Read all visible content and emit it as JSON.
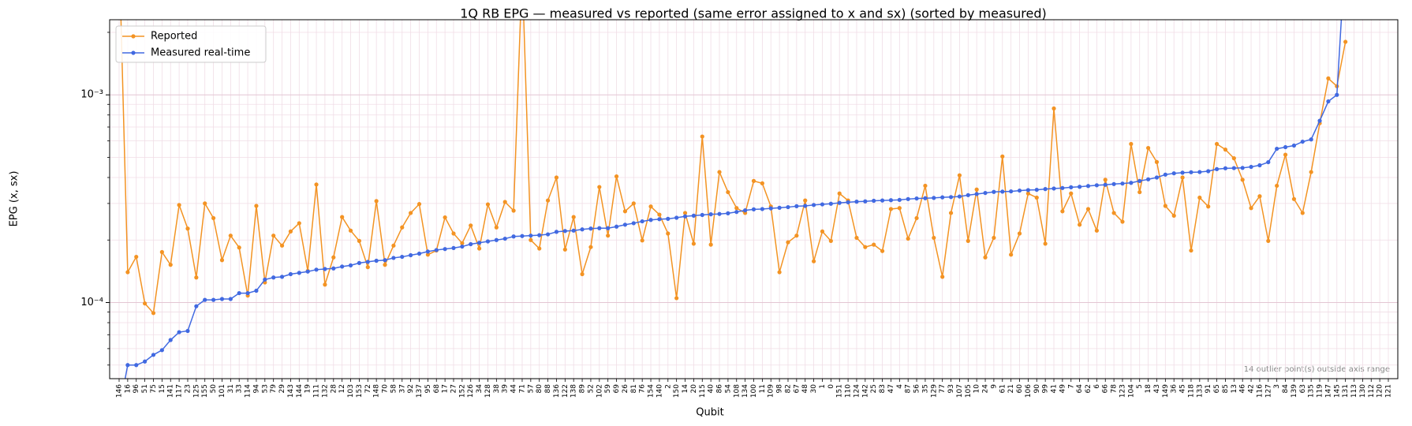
{
  "chart_data": {
    "type": "line",
    "title": "1Q RB EPG — measured vs reported (same error assigned to x and sx) (sorted by measured)",
    "xlabel": "Qubit",
    "ylabel": "EPG (x, sx)",
    "annotation": "14 outlier point(s) outside axis range",
    "yscale": "log",
    "grid": true,
    "legend": "upper left",
    "ylim": [
      4.3e-05,
      0.0023
    ],
    "yticks": [
      {
        "value": 0.0001,
        "label": "10⁻⁴"
      },
      {
        "value": 0.001,
        "label": "10⁻³"
      }
    ],
    "yminorticks": [
      5e-05,
      6e-05,
      7e-05,
      8e-05,
      9e-05,
      0.0002,
      0.0003,
      0.0004,
      0.0005,
      0.0006,
      0.0007,
      0.0008,
      0.0009,
      0.002
    ],
    "categories": [
      "146",
      "16",
      "96",
      "51",
      "75",
      "15",
      "141",
      "117",
      "23",
      "125",
      "155",
      "50",
      "101",
      "31",
      "33",
      "114",
      "94",
      "53",
      "79",
      "29",
      "143",
      "144",
      "19",
      "111",
      "132",
      "28",
      "12",
      "103",
      "153",
      "72",
      "148",
      "70",
      "58",
      "37",
      "92",
      "137",
      "95",
      "68",
      "17",
      "27",
      "152",
      "126",
      "34",
      "128",
      "38",
      "39",
      "44",
      "71",
      "57",
      "80",
      "88",
      "136",
      "122",
      "138",
      "89",
      "52",
      "102",
      "59",
      "69",
      "26",
      "81",
      "76",
      "154",
      "140",
      "2",
      "150",
      "14",
      "20",
      "115",
      "40",
      "86",
      "54",
      "108",
      "134",
      "100",
      "11",
      "109",
      "98",
      "82",
      "67",
      "48",
      "30",
      "1",
      "0",
      "151",
      "110",
      "124",
      "142",
      "25",
      "83",
      "47",
      "4",
      "87",
      "56",
      "35",
      "129",
      "77",
      "93",
      "107",
      "105",
      "10",
      "24",
      "9",
      "61",
      "21",
      "60",
      "106",
      "90",
      "99",
      "41",
      "49",
      "7",
      "64",
      "62",
      "6",
      "66",
      "78",
      "123",
      "104",
      "5",
      "18",
      "43",
      "149",
      "36",
      "45",
      "118",
      "133",
      "91",
      "65",
      "85",
      "13",
      "46",
      "42",
      "116",
      "127",
      "3",
      "84",
      "139",
      "63",
      "135",
      "119",
      "147",
      "145",
      "131",
      "113",
      "130",
      "112",
      "120",
      "121"
    ],
    "series": [
      {
        "name": "Reported",
        "color": "#f39323",
        "values": [
          0.005,
          0.00014,
          0.000166,
          9.9e-05,
          8.9e-05,
          0.000175,
          0.000152,
          0.000295,
          0.000227,
          0.000132,
          0.0003,
          0.000255,
          0.00016,
          0.00021,
          0.000184,
          0.000108,
          0.000292,
          0.000125,
          0.00021,
          0.000188,
          0.00022,
          0.000241,
          0.000142,
          0.00037,
          0.000122,
          0.000165,
          0.000258,
          0.000222,
          0.000198,
          0.000148,
          0.000308,
          0.000152,
          0.000188,
          0.00023,
          0.00027,
          0.000298,
          0.00017,
          0.000178,
          0.000257,
          0.000215,
          0.000193,
          0.000235,
          0.000182,
          0.000297,
          0.00023,
          0.000305,
          0.000277,
          0.004,
          0.0002,
          0.000182,
          0.00031,
          0.0004,
          0.00018,
          0.000258,
          0.000137,
          0.000185,
          0.00036,
          0.00021,
          0.000405,
          0.000275,
          0.0003,
          0.000199,
          0.00029,
          0.000265,
          0.000215,
          0.000105,
          0.00027,
          0.000192,
          0.00063,
          0.00019,
          0.000425,
          0.00034,
          0.000285,
          0.00027,
          0.000385,
          0.000375,
          0.00029,
          0.00014,
          0.000195,
          0.00021,
          0.00031,
          0.000158,
          0.00022,
          0.000198,
          0.000335,
          0.00031,
          0.000205,
          0.000185,
          0.00019,
          0.000177,
          0.000282,
          0.000285,
          0.000203,
          0.000255,
          0.000365,
          0.000205,
          0.000133,
          0.00027,
          0.00041,
          0.000198,
          0.00035,
          0.000165,
          0.000205,
          0.000505,
          0.00017,
          0.000215,
          0.000335,
          0.00032,
          0.000192,
          0.00086,
          0.000275,
          0.000335,
          0.000237,
          0.000282,
          0.000222,
          0.00039,
          0.00027,
          0.000245,
          0.00058,
          0.00034,
          0.000555,
          0.000475,
          0.000292,
          0.000262,
          0.0004,
          0.000178,
          0.00032,
          0.00029,
          0.00058,
          0.000545,
          0.000495,
          0.00039,
          0.000285,
          0.000325,
          0.000198,
          0.000365,
          0.000515,
          0.000315,
          0.00027,
          0.000425,
          0.00073,
          0.0012,
          0.0011,
          0.0018,
          null,
          null,
          null,
          null,
          null
        ]
      },
      {
        "name": "Measured real-time",
        "color": "#4169e1",
        "values": [
          3e-05,
          5e-05,
          5e-05,
          5.2e-05,
          5.6e-05,
          5.9e-05,
          6.6e-05,
          7.2e-05,
          7.3e-05,
          9.6e-05,
          0.000103,
          0.000103,
          0.000104,
          0.000104,
          0.000111,
          0.000111,
          0.000114,
          0.000129,
          0.000132,
          0.000133,
          0.000137,
          0.000139,
          0.000141,
          0.000144,
          0.000145,
          0.000146,
          0.000149,
          0.000151,
          0.000155,
          0.000157,
          0.000159,
          0.00016,
          0.000164,
          0.000166,
          0.000169,
          0.000172,
          0.000176,
          0.000179,
          0.000181,
          0.000183,
          0.000186,
          0.000191,
          0.000194,
          0.000197,
          0.0002,
          0.000203,
          0.000208,
          0.000209,
          0.00021,
          0.000211,
          0.000213,
          0.000219,
          0.000221,
          0.000222,
          0.000225,
          0.000227,
          0.000228,
          0.000228,
          0.000232,
          0.000237,
          0.000241,
          0.000246,
          0.00025,
          0.000252,
          0.000253,
          0.000256,
          0.00026,
          0.000262,
          0.000264,
          0.000266,
          0.000267,
          0.000269,
          0.000273,
          0.000278,
          0.000281,
          0.000282,
          0.000284,
          0.000286,
          0.000288,
          0.000291,
          0.000292,
          0.000295,
          0.000297,
          0.000299,
          0.000302,
          0.000304,
          0.000306,
          0.000307,
          0.000309,
          0.00031,
          0.000311,
          0.000312,
          0.000315,
          0.000317,
          0.000318,
          0.000319,
          0.000321,
          0.000322,
          0.000324,
          0.000329,
          0.000333,
          0.000337,
          0.000341,
          0.000342,
          0.000343,
          0.000346,
          0.000348,
          0.000349,
          0.000352,
          0.000354,
          0.000356,
          0.000359,
          0.000361,
          0.000364,
          0.000367,
          0.000369,
          0.000372,
          0.000374,
          0.000377,
          0.000385,
          0.000392,
          0.0004,
          0.000413,
          0.000419,
          0.000422,
          0.000424,
          0.000425,
          0.000429,
          0.000439,
          0.000443,
          0.000444,
          0.000445,
          0.00045,
          0.000458,
          0.000474,
          0.00055,
          0.00056,
          0.00057,
          0.000595,
          0.00061,
          0.00075,
          0.00093,
          0.001,
          0.005,
          null,
          null,
          null,
          null,
          null
        ]
      }
    ]
  }
}
